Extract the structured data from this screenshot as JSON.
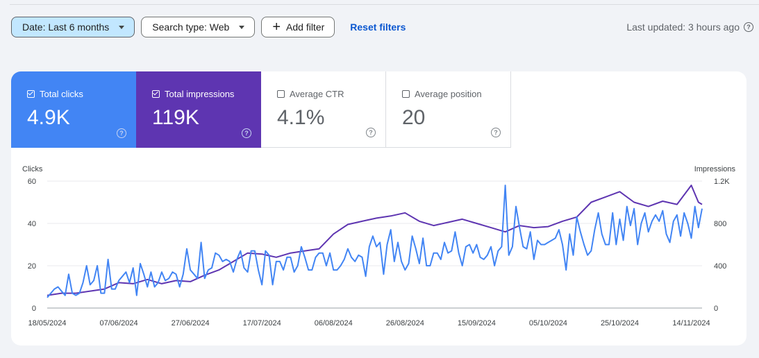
{
  "filters": {
    "date_label": "Date: Last 6 months",
    "search_type_label": "Search type: Web",
    "add_filter_label": "Add filter",
    "reset_label": "Reset filters",
    "last_updated": "Last updated: 3 hours ago"
  },
  "metrics": {
    "clicks": {
      "label": "Total clicks",
      "value": "4.9K",
      "checked": true,
      "color": "#4285f4"
    },
    "impressions": {
      "label": "Total impressions",
      "value": "119K",
      "checked": true,
      "color": "#5e35b1"
    },
    "ctr": {
      "label": "Average CTR",
      "value": "4.1%",
      "checked": false
    },
    "position": {
      "label": "Average position",
      "value": "20",
      "checked": false
    }
  },
  "chart_data": {
    "type": "line",
    "ylabel_left": "Clicks",
    "ylabel_right": "Impressions",
    "y_left_ticks": [
      "0",
      "20",
      "40",
      "60"
    ],
    "y_right_ticks": [
      "0",
      "400",
      "800",
      "1.2K"
    ],
    "ylim_left": [
      0,
      60
    ],
    "ylim_right": [
      0,
      1200
    ],
    "x_ticks": [
      "18/05/2024",
      "07/06/2024",
      "27/06/2024",
      "17/07/2024",
      "06/08/2024",
      "26/08/2024",
      "15/09/2024",
      "05/10/2024",
      "25/10/2024",
      "14/11/2024"
    ],
    "x_range_days": [
      0,
      183
    ],
    "grid": true,
    "series": [
      {
        "name": "Clicks",
        "axis": "left",
        "color": "#4285f4",
        "points": [
          [
            0,
            5
          ],
          [
            2,
            9
          ],
          [
            3,
            10
          ],
          [
            4,
            8
          ],
          [
            5,
            6
          ],
          [
            6,
            16
          ],
          [
            7,
            7
          ],
          [
            8,
            6
          ],
          [
            9,
            7
          ],
          [
            10,
            12
          ],
          [
            11,
            20
          ],
          [
            12,
            11
          ],
          [
            13,
            13
          ],
          [
            14,
            20
          ],
          [
            15,
            7
          ],
          [
            16,
            7
          ],
          [
            17,
            23
          ],
          [
            18,
            9
          ],
          [
            19,
            9
          ],
          [
            20,
            13
          ],
          [
            21,
            15
          ],
          [
            22,
            17
          ],
          [
            23,
            12
          ],
          [
            24,
            19
          ],
          [
            25,
            6
          ],
          [
            26,
            21
          ],
          [
            27,
            16
          ],
          [
            28,
            10
          ],
          [
            29,
            17
          ],
          [
            30,
            10
          ],
          [
            31,
            12
          ],
          [
            32,
            17
          ],
          [
            33,
            13
          ],
          [
            34,
            14
          ],
          [
            35,
            17
          ],
          [
            36,
            16
          ],
          [
            37,
            10
          ],
          [
            38,
            16
          ],
          [
            39,
            28
          ],
          [
            40,
            18
          ],
          [
            41,
            16
          ],
          [
            42,
            14
          ],
          [
            43,
            31
          ],
          [
            44,
            14
          ],
          [
            45,
            18
          ],
          [
            46,
            19
          ],
          [
            47,
            26
          ],
          [
            48,
            25
          ],
          [
            49,
            22
          ],
          [
            50,
            23
          ],
          [
            51,
            22
          ],
          [
            52,
            17
          ],
          [
            53,
            23
          ],
          [
            54,
            27
          ],
          [
            55,
            19
          ],
          [
            56,
            17
          ],
          [
            57,
            27
          ],
          [
            58,
            27
          ],
          [
            59,
            18
          ],
          [
            60,
            11
          ],
          [
            61,
            27
          ],
          [
            62,
            25
          ],
          [
            63,
            11
          ],
          [
            64,
            22
          ],
          [
            65,
            22
          ],
          [
            66,
            18
          ],
          [
            67,
            24
          ],
          [
            68,
            24
          ],
          [
            69,
            17
          ],
          [
            70,
            20
          ],
          [
            71,
            29
          ],
          [
            72,
            24
          ],
          [
            73,
            18
          ],
          [
            74,
            18
          ],
          [
            75,
            24
          ],
          [
            76,
            26
          ],
          [
            77,
            26
          ],
          [
            78,
            20
          ],
          [
            79,
            26
          ],
          [
            80,
            18
          ],
          [
            81,
            18
          ],
          [
            82,
            20
          ],
          [
            83,
            23
          ],
          [
            84,
            28
          ],
          [
            85,
            24
          ],
          [
            86,
            22
          ],
          [
            87,
            25
          ],
          [
            88,
            24
          ],
          [
            89,
            15
          ],
          [
            90,
            29
          ],
          [
            91,
            34
          ],
          [
            92,
            29
          ],
          [
            93,
            31
          ],
          [
            94,
            16
          ],
          [
            95,
            30
          ],
          [
            96,
            37
          ],
          [
            97,
            22
          ],
          [
            98,
            31
          ],
          [
            99,
            22
          ],
          [
            100,
            18
          ],
          [
            101,
            21
          ],
          [
            102,
            34
          ],
          [
            103,
            28
          ],
          [
            104,
            21
          ],
          [
            105,
            33
          ],
          [
            106,
            20
          ],
          [
            107,
            20
          ],
          [
            108,
            26
          ],
          [
            109,
            26
          ],
          [
            110,
            23
          ],
          [
            111,
            31
          ],
          [
            112,
            26
          ],
          [
            113,
            27
          ],
          [
            114,
            36
          ],
          [
            115,
            26
          ],
          [
            116,
            20
          ],
          [
            117,
            29
          ],
          [
            118,
            30
          ],
          [
            119,
            26
          ],
          [
            120,
            30
          ],
          [
            121,
            24
          ],
          [
            122,
            23
          ],
          [
            123,
            25
          ],
          [
            124,
            29
          ],
          [
            125,
            20
          ],
          [
            126,
            27
          ],
          [
            127,
            29
          ],
          [
            128,
            58
          ],
          [
            129,
            25
          ],
          [
            130,
            29
          ],
          [
            131,
            48
          ],
          [
            132,
            38
          ],
          [
            133,
            29
          ],
          [
            134,
            28
          ],
          [
            135,
            36
          ],
          [
            136,
            23
          ],
          [
            137,
            32
          ],
          [
            138,
            30
          ],
          [
            139,
            30
          ],
          [
            140,
            31
          ],
          [
            141,
            32
          ],
          [
            142,
            33
          ],
          [
            143,
            37
          ],
          [
            144,
            30
          ],
          [
            145,
            18
          ],
          [
            146,
            35
          ],
          [
            147,
            25
          ],
          [
            148,
            43
          ],
          [
            149,
            36
          ],
          [
            150,
            30
          ],
          [
            151,
            25
          ],
          [
            152,
            27
          ],
          [
            153,
            37
          ],
          [
            154,
            45
          ],
          [
            155,
            35
          ],
          [
            156,
            30
          ],
          [
            157,
            30
          ],
          [
            158,
            45
          ],
          [
            159,
            30
          ],
          [
            160,
            42
          ],
          [
            161,
            32
          ],
          [
            162,
            48
          ],
          [
            163,
            39
          ],
          [
            164,
            47
          ],
          [
            165,
            30
          ],
          [
            166,
            40
          ],
          [
            167,
            45
          ],
          [
            168,
            36
          ],
          [
            169,
            41
          ],
          [
            170,
            44
          ],
          [
            171,
            41
          ],
          [
            172,
            46
          ],
          [
            173,
            35
          ],
          [
            174,
            31
          ],
          [
            175,
            41
          ],
          [
            176,
            44
          ],
          [
            177,
            34
          ],
          [
            178,
            45
          ],
          [
            179,
            40
          ],
          [
            180,
            33
          ],
          [
            181,
            48
          ],
          [
            182,
            38
          ],
          [
            183,
            47
          ]
        ]
      },
      {
        "name": "Impressions",
        "axis": "right",
        "color": "#5e35b1",
        "points": [
          [
            0,
            120
          ],
          [
            4,
            140
          ],
          [
            8,
            140
          ],
          [
            12,
            160
          ],
          [
            16,
            180
          ],
          [
            20,
            240
          ],
          [
            24,
            230
          ],
          [
            28,
            270
          ],
          [
            32,
            230
          ],
          [
            36,
            260
          ],
          [
            40,
            250
          ],
          [
            44,
            310
          ],
          [
            48,
            360
          ],
          [
            52,
            440
          ],
          [
            56,
            520
          ],
          [
            60,
            510
          ],
          [
            64,
            480
          ],
          [
            68,
            520
          ],
          [
            72,
            540
          ],
          [
            76,
            560
          ],
          [
            80,
            700
          ],
          [
            84,
            790
          ],
          [
            88,
            820
          ],
          [
            92,
            850
          ],
          [
            96,
            870
          ],
          [
            100,
            900
          ],
          [
            104,
            820
          ],
          [
            108,
            780
          ],
          [
            112,
            810
          ],
          [
            116,
            840
          ],
          [
            120,
            800
          ],
          [
            124,
            760
          ],
          [
            128,
            720
          ],
          [
            132,
            780
          ],
          [
            136,
            760
          ],
          [
            140,
            770
          ],
          [
            144,
            820
          ],
          [
            148,
            860
          ],
          [
            152,
            1000
          ],
          [
            156,
            1050
          ],
          [
            160,
            1100
          ],
          [
            164,
            1000
          ],
          [
            168,
            960
          ],
          [
            172,
            1010
          ],
          [
            176,
            980
          ],
          [
            180,
            1160
          ],
          [
            182,
            1000
          ],
          [
            183,
            980
          ]
        ]
      }
    ]
  }
}
